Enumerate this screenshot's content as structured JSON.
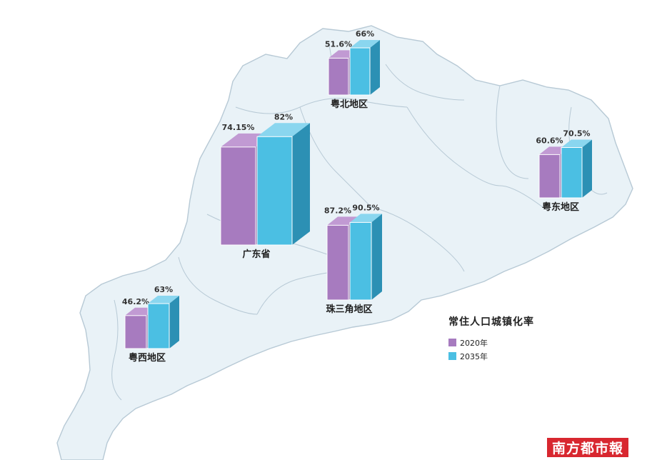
{
  "chart_data": {
    "type": "bar",
    "title": "常住人口城镇化率",
    "series": [
      {
        "name": "2020年",
        "color": "#a77bbf"
      },
      {
        "name": "2035年",
        "color": "#4bbfe3"
      }
    ],
    "regions": [
      {
        "id": "yuebei",
        "name": "粤北地区",
        "values": [
          51.6,
          66
        ],
        "value_labels": [
          "51.6%",
          "66%"
        ]
      },
      {
        "id": "guangdong",
        "name": "广东省",
        "values": [
          74.15,
          82
        ],
        "value_labels": [
          "74.15%",
          "82%"
        ]
      },
      {
        "id": "yuedong",
        "name": "粤东地区",
        "values": [
          60.6,
          70.5
        ],
        "value_labels": [
          "60.6%",
          "70.5%"
        ]
      },
      {
        "id": "zhusanjiao",
        "name": "珠三角地区",
        "values": [
          87.2,
          90.5
        ],
        "value_labels": [
          "87.2%",
          "90.5%"
        ]
      },
      {
        "id": "yuexi",
        "name": "粤西地区",
        "values": [
          46.2,
          63
        ],
        "value_labels": [
          "46.2%",
          "63%"
        ]
      }
    ],
    "unit": "%"
  },
  "legend": {
    "title": "常住人口城镇化率",
    "items": [
      {
        "label": "2020年",
        "color": "#a77bbf"
      },
      {
        "label": "2035年",
        "color": "#4bbfe3"
      }
    ]
  },
  "colors": {
    "map_fill": "#e9f2f7",
    "map_border": "#b7c9d5",
    "bar_2020": "#a77bbf",
    "bar_2020_top": "#c19ad3",
    "bar_2020_side": "#86599e",
    "bar_2035": "#4bbfe3",
    "bar_2035_top": "#8ad6ef",
    "bar_2035_side": "#2c90b4",
    "masthead": "#d8272f"
  },
  "watermark": {
    "text": "南方都市報"
  }
}
